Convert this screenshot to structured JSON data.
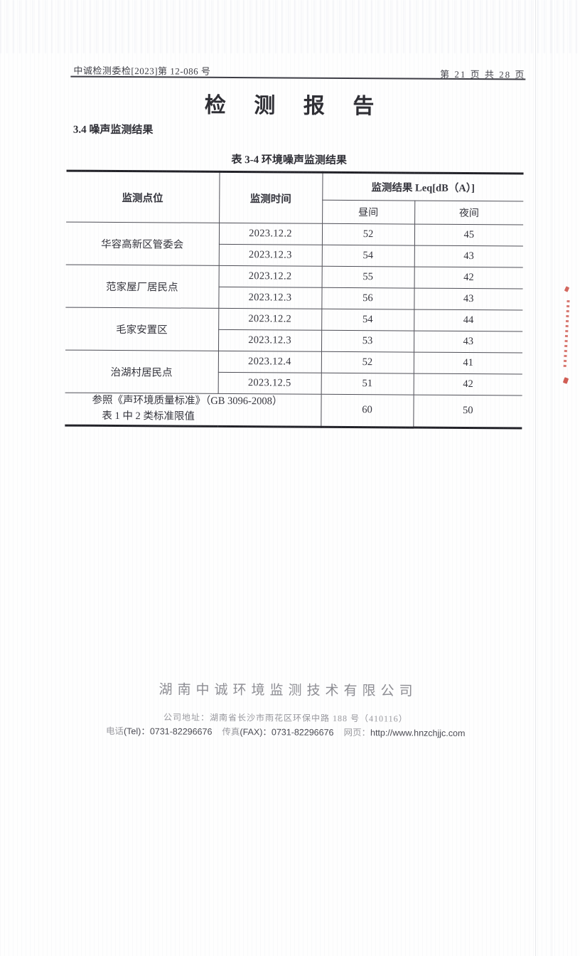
{
  "header": {
    "doc_number": "中诚检测委检[2023]第 12-086 号",
    "page_indicator": "第 21 页 共 28 页"
  },
  "title": "检 测 报 告",
  "section_heading": "3.4 噪声监测结果",
  "table_title": "表 3-4 环境噪声监测结果",
  "table": {
    "headers": {
      "site": "监测点位",
      "time": "监测时间",
      "result": "监测结果 Leq[dB（A）]",
      "day": "昼间",
      "night": "夜间"
    },
    "groups": [
      {
        "site": "华容高新区管委会",
        "rows": [
          {
            "date": "2023.12.2",
            "day": "52",
            "night": "45"
          },
          {
            "date": "2023.12.3",
            "day": "54",
            "night": "43"
          }
        ]
      },
      {
        "site": "范家屋厂居民点",
        "rows": [
          {
            "date": "2023.12.2",
            "day": "55",
            "night": "42"
          },
          {
            "date": "2023.12.3",
            "day": "56",
            "night": "43"
          }
        ]
      },
      {
        "site": "毛家安置区",
        "rows": [
          {
            "date": "2023.12.2",
            "day": "54",
            "night": "44"
          },
          {
            "date": "2023.12.3",
            "day": "53",
            "night": "43"
          }
        ]
      },
      {
        "site": "治湖村居民点",
        "rows": [
          {
            "date": "2023.12.4",
            "day": "52",
            "night": "41"
          },
          {
            "date": "2023.12.5",
            "day": "51",
            "night": "42"
          }
        ]
      }
    ],
    "standard_row": {
      "label_line1": "参照《声环境质量标准》（GB 3096-2008）",
      "label_line2": "表 1 中 2 类标准限值",
      "day": "60",
      "night": "50"
    }
  },
  "footer": {
    "company": "湖南中诚环境监测技术有限公司",
    "address_label": "公司地址：",
    "address": "湖南省长沙市雨花区环保中路 188 号（410116）",
    "tel_label_cn": "电话",
    "tel_label_en": "(Tel)：",
    "tel": "0731-82296676",
    "fax_label_cn": "传真",
    "fax_label_en": "(FAX)：",
    "fax": "0731-82296676",
    "web_label": "网页：",
    "web": "http://www.hnzchjjc.com"
  },
  "colors": {
    "ink": "#34343c",
    "table_border": "#4e4e56",
    "thick_rule": "#222228",
    "footer_gray": "#8d8d93",
    "stamp_red": "#c94136"
  }
}
